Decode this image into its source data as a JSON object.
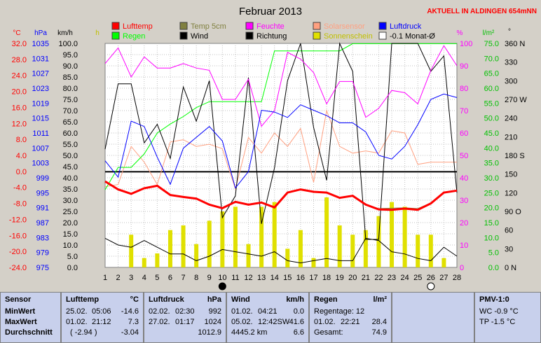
{
  "header": {
    "title": "Februar 2013",
    "live_label": "AKTUELL IN ALDINGEN 654mNN",
    "colors": {
      "live": "#ff0000"
    }
  },
  "axes": {
    "temp_unit": "°C",
    "pressure_unit": "hPa",
    "wind_unit": "km/h",
    "hour_unit": "h",
    "percent_unit": "%",
    "rain_unit": "l/m²",
    "degree_unit": "°"
  },
  "legend": [
    {
      "label": "Lufttemp",
      "color": "#ff0000"
    },
    {
      "label": "Temp 5cm",
      "color": "#808040"
    },
    {
      "label": "Feuchte",
      "color": "#ff00ff"
    },
    {
      "label": "Solarsensor",
      "color": "#ffa080"
    },
    {
      "label": "Luftdruck",
      "color": "#0000ff"
    },
    {
      "label": "Regen",
      "color": "#00ff00"
    },
    {
      "label": "Wind",
      "color": "#000000"
    },
    {
      "label": "Richtung",
      "color": "#000000"
    },
    {
      "label": "Sonnenschein",
      "color": "#e0e000"
    },
    {
      "label": "-0.1 Monat-Ø",
      "color": "#ffffff"
    }
  ],
  "chart_data": {
    "type": "line",
    "title": "Februar 2013",
    "x": [
      1,
      2,
      3,
      4,
      5,
      6,
      7,
      8,
      9,
      10,
      11,
      12,
      13,
      14,
      15,
      16,
      17,
      18,
      19,
      20,
      21,
      22,
      23,
      24,
      25,
      26,
      27,
      28
    ],
    "left_axes": {
      "temp_ticks": [
        "32.0",
        "28.0",
        "24.0",
        "20.0",
        "16.0",
        "12.0",
        "8.0",
        "4.0",
        "0.0",
        "-4.0",
        "-8.0",
        "-12.0",
        "-16.0",
        "-20.0",
        "-24.0"
      ],
      "pressure_ticks": [
        "1035",
        "1031",
        "1027",
        "1023",
        "1019",
        "1015",
        "1011",
        "1007",
        "1003",
        "999",
        "995",
        "991",
        "987",
        "983",
        "979",
        "975"
      ],
      "wind_ticks": [
        "100.0",
        "95.0",
        "90.0",
        "85.0",
        "80.0",
        "75.0",
        "70.0",
        "65.0",
        "60.0",
        "55.0",
        "50.0",
        "45.0",
        "40.0",
        "35.0",
        "30.0",
        "25.0",
        "20.0",
        "15.0",
        "10.0",
        "5.0",
        "0.0"
      ],
      "wind_range": [
        0,
        100
      ]
    },
    "right_axes": {
      "percent_ticks": [
        "100",
        "90",
        "80",
        "70",
        "60",
        "50",
        "40",
        "30",
        "20",
        "10",
        "0"
      ],
      "rain_ticks": [
        "75.0",
        "70.0",
        "65.0",
        "60.0",
        "55.0",
        "50.0",
        "45.0",
        "40.0",
        "35.0",
        "30.0",
        "25.0",
        "20.0",
        "15.0",
        "10.0",
        "5.0",
        "0.0"
      ],
      "direction_ticks": [
        "360 N",
        "330",
        "300",
        "270 W",
        "240",
        "210",
        "180 S",
        "150",
        "120",
        "90 O",
        "60",
        "30",
        "0 N"
      ],
      "percent_range": [
        0,
        100
      ]
    },
    "series": [
      {
        "name": "Lufttemp",
        "color": "#ff0000",
        "width": 3,
        "values": [
          -2.5,
          -4.5,
          -5.6,
          -4.2,
          -3.6,
          -5.9,
          -6.4,
          -6.8,
          -8.3,
          -9.2,
          -7.6,
          -8.3,
          -7.8,
          -9.0,
          -5.3,
          -4.5,
          -5.1,
          -5.3,
          -6.6,
          -6.1,
          -8.3,
          -9.5,
          -9.6,
          -9.3,
          -9.6,
          -8.0,
          -5.3,
          -4.8
        ]
      },
      {
        "name": "Temp 5cm",
        "color": "#808040",
        "width": 1,
        "values": [
          -2.5,
          -4.6,
          -5.7,
          -4.3,
          -3.7,
          -6.0,
          -6.5,
          -6.9,
          -8.4,
          -9.3,
          -7.7,
          -8.4,
          -7.9,
          -9.1,
          -5.4,
          -4.6,
          -5.2,
          -5.4,
          -6.7,
          -6.2,
          -8.4,
          -9.3,
          -9.2,
          -9.1,
          -9.3,
          -7.9,
          -5.4,
          -4.9
        ]
      },
      {
        "name": "Feuchte",
        "color": "#ff00ff",
        "width": 1,
        "values": [
          91,
          98,
          85,
          94,
          89,
          89,
          91,
          89,
          88,
          75,
          75,
          84,
          63,
          70,
          96,
          93,
          87,
          73,
          83,
          83,
          67,
          71,
          79,
          78,
          73,
          88,
          99,
          90
        ]
      },
      {
        "name": "Solarsensor",
        "color": "#ffa080",
        "width": 1,
        "values": [
          36,
          37,
          54,
          47,
          37,
          56,
          57,
          54,
          55,
          53,
          35,
          58,
          51,
          60,
          54,
          62,
          38,
          70,
          54,
          51,
          52,
          51,
          61,
          60,
          46,
          47,
          47,
          47
        ]
      },
      {
        "name": "Luftdruck",
        "color": "#0000ff",
        "width": 1,
        "values": [
          1004.5,
          1000,
          1015.5,
          1014,
          1005.5,
          998,
          1008,
          1011,
          1014,
          1010,
          997,
          1001.5,
          1018.5,
          1018,
          1016.5,
          1020,
          1018.5,
          1017,
          1015,
          1015,
          1012.5,
          1006,
          1005,
          1008.5,
          1014.5,
          1021.5,
          1023,
          1022
        ]
      },
      {
        "name": "Regen",
        "color": "#00ff00",
        "width": 1,
        "values": [
          26,
          33.5,
          33.5,
          38,
          45,
          48,
          50.5,
          53.5,
          55.5,
          55.5,
          55.5,
          55.5,
          55.5,
          72.5,
          72.5,
          72.5,
          72.5,
          72.5,
          72.5,
          74.9,
          74.9,
          74.9,
          74.9,
          74.9,
          74.9,
          74.9,
          74.9,
          74.9
        ]
      },
      {
        "name": "Wind",
        "color": "#000000",
        "width": 1,
        "values": [
          13,
          10,
          9,
          12,
          9,
          6,
          6,
          3,
          5,
          8,
          7,
          6,
          5,
          7,
          3,
          2,
          3,
          4,
          3,
          3,
          13,
          12,
          7,
          6,
          4,
          3,
          9,
          5
        ]
      },
      {
        "name": "Richtung",
        "color": "#000000",
        "width": 1,
        "values": [
          190,
          295,
          295,
          200,
          230,
          175,
          290,
          235,
          300,
          80,
          115,
          305,
          70,
          160,
          300,
          360,
          225,
          140,
          360,
          315,
          45,
          45,
          360,
          360,
          360,
          315,
          340,
          120
        ]
      }
    ],
    "sunshine_hours": [
      0,
      0,
      3.5,
      1,
      1.5,
      4,
      4.5,
      2.5,
      5,
      6,
      6.5,
      2.5,
      6.5,
      7,
      2,
      4,
      1,
      7.5,
      4.5,
      3.5,
      4,
      5.5,
      7,
      6.5,
      3.5,
      3.5,
      1,
      0
    ],
    "average_line": -0.1,
    "moon_markers": [
      {
        "day": 10,
        "phase": "new"
      },
      {
        "day": 26,
        "phase": "full"
      }
    ]
  },
  "panels": {
    "sensor": {
      "title": "Sensor",
      "rows": [
        "MinWert",
        "MaxWert",
        "Durchschnitt"
      ]
    },
    "lufttemp": {
      "title": "Lufttemp",
      "unit": "°C",
      "min_date": "25.02.",
      "min_time": "05:06",
      "min_val": "-14.6",
      "max_date": "01.02.",
      "max_time": "21:12",
      "max_val": "7.3",
      "avg_note": "( -2.94 )",
      "avg_val": "-3.04"
    },
    "luftdruck": {
      "title": "Luftdruck",
      "unit": "hPa",
      "min_date": "02.02.",
      "min_time": "02:30",
      "min_val": "992",
      "max_date": "27.02.",
      "max_time": "01:17",
      "max_val": "1024",
      "avg_val": "1012.9"
    },
    "wind": {
      "title": "Wind",
      "unit": "km/h",
      "min_date": "01.02.",
      "min_time": "04:21",
      "min_val": "0.0",
      "max_date": "05.02.",
      "max_time": "12:42SW",
      "max_val": "41.6",
      "avg_dist": "4445.2 km",
      "avg_val": "6.6"
    },
    "regen": {
      "title": "Regen",
      "unit": "l/m²",
      "row1": "Regentage: 12",
      "max_date": "01.02.",
      "max_time": "22:21",
      "max_val": "28.4",
      "total_label": "Gesamt:",
      "total_val": "74.9"
    },
    "pmv": {
      "title": "PMV-1:0",
      "wc": "WC -0.9 °C",
      "tp": "TP -1.5 °C"
    }
  }
}
